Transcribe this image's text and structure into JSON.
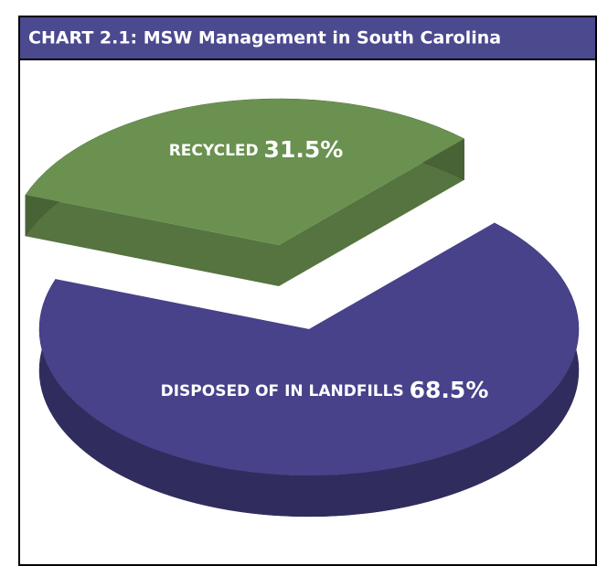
{
  "chart_data": {
    "type": "pie",
    "title": "CHART 2.1: MSW Management in South Carolina",
    "categories": [
      "RECYCLED",
      "DISPOSED OF IN LANDFILLS"
    ],
    "values": [
      31.5,
      68.5
    ],
    "value_labels": [
      "31.5%",
      "68.5%"
    ],
    "colors": [
      "#6a9150",
      "#47428a"
    ]
  }
}
